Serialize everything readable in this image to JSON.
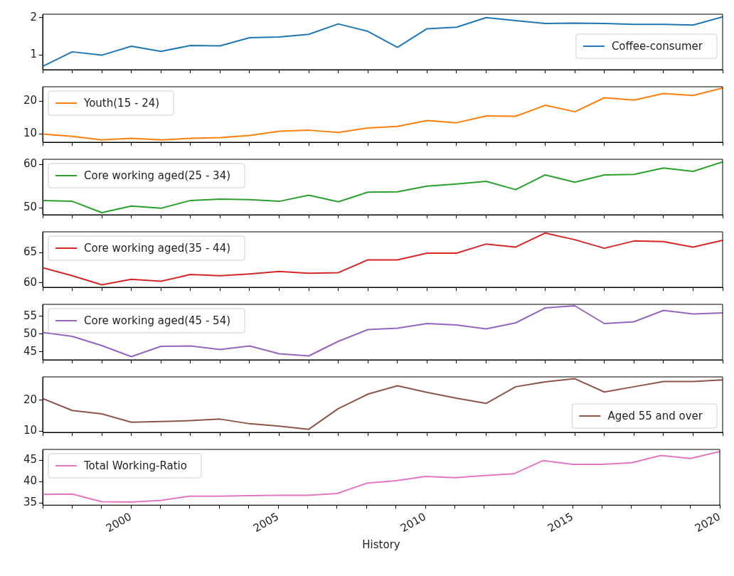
{
  "chart_data": [
    {
      "type": "line",
      "x": [
        1997,
        1998,
        1999,
        2000,
        2001,
        2002,
        2003,
        2004,
        2005,
        2006,
        2007,
        2008,
        2009,
        2010,
        2011,
        2012,
        2013,
        2014,
        2015,
        2016,
        2017,
        2018,
        2019,
        2020
      ],
      "xlim": [
        1997,
        2020
      ],
      "xticks": [
        {
          "value": 1997,
          "label": null
        },
        {
          "value": 1998,
          "label": null
        },
        {
          "value": 1999,
          "label": null
        },
        2000,
        {
          "value": 2001,
          "label": null
        },
        {
          "value": 2002,
          "label": null
        },
        {
          "value": 2003,
          "label": null
        },
        {
          "value": 2004,
          "label": null
        },
        2005,
        {
          "value": 2006,
          "label": null
        },
        {
          "value": 2007,
          "label": null
        },
        {
          "value": 2008,
          "label": null
        },
        {
          "value": 2009,
          "label": null
        },
        2010,
        {
          "value": 2011,
          "label": null
        },
        {
          "value": 2012,
          "label": null
        },
        {
          "value": 2013,
          "label": null
        },
        {
          "value": 2014,
          "label": null
        },
        2015,
        {
          "value": 2016,
          "label": null
        },
        {
          "value": 2017,
          "label": null
        },
        {
          "value": 2018,
          "label": null
        },
        {
          "value": 2019,
          "label": null
        },
        2020
      ],
      "ylim": [
        0.6,
        2.09
      ],
      "yticks": [
        1,
        2
      ],
      "tick_labels": "y",
      "legend": "right",
      "series": [
        {
          "name": "Coffee-consumer",
          "color": "#1f77b4",
          "values": [
            0.69,
            1.08,
            0.99,
            1.23,
            1.09,
            1.25,
            1.24,
            1.46,
            1.48,
            1.55,
            1.83,
            1.63,
            1.2,
            1.7,
            1.74,
            2.0,
            1.92,
            1.84,
            1.85,
            1.84,
            1.82,
            1.82,
            1.8,
            2.02
          ]
        }
      ]
    },
    {
      "type": "line",
      "x": [
        1997,
        1998,
        1999,
        2000,
        2001,
        2002,
        2003,
        2004,
        2005,
        2006,
        2007,
        2008,
        2009,
        2010,
        2011,
        2012,
        2013,
        2014,
        2015,
        2016,
        2017,
        2018,
        2019,
        2020
      ],
      "xlim": [
        1997,
        2020
      ],
      "xticks": [
        {
          "value": 1997,
          "label": null
        },
        {
          "value": 1998,
          "label": null
        },
        {
          "value": 1999,
          "label": null
        },
        2000,
        {
          "value": 2001,
          "label": null
        },
        {
          "value": 2002,
          "label": null
        },
        {
          "value": 2003,
          "label": null
        },
        {
          "value": 2004,
          "label": null
        },
        2005,
        {
          "value": 2006,
          "label": null
        },
        {
          "value": 2007,
          "label": null
        },
        {
          "value": 2008,
          "label": null
        },
        {
          "value": 2009,
          "label": null
        },
        2010,
        {
          "value": 2011,
          "label": null
        },
        {
          "value": 2012,
          "label": null
        },
        {
          "value": 2013,
          "label": null
        },
        {
          "value": 2014,
          "label": null
        },
        2015,
        {
          "value": 2016,
          "label": null
        },
        {
          "value": 2017,
          "label": null
        },
        {
          "value": 2018,
          "label": null
        },
        {
          "value": 2019,
          "label": null
        },
        2020
      ],
      "ylim": [
        7.4,
        24.5
      ],
      "yticks": [
        10,
        20
      ],
      "tick_labels": "y",
      "legend": "top left",
      "series": [
        {
          "name": "Youth(15 - 24)",
          "color": "#ff7f0e",
          "values": [
            9.9,
            9.2,
            8.1,
            8.6,
            8.1,
            8.6,
            8.8,
            9.5,
            10.8,
            11.1,
            10.4,
            11.8,
            12.3,
            14.1,
            13.4,
            15.5,
            15.4,
            18.8,
            16.8,
            21.1,
            20.4,
            22.4,
            21.8,
            24.1
          ]
        }
      ]
    },
    {
      "type": "line",
      "x": [
        1997,
        1998,
        1999,
        2000,
        2001,
        2002,
        2003,
        2004,
        2005,
        2006,
        2007,
        2008,
        2009,
        2010,
        2011,
        2012,
        2013,
        2014,
        2015,
        2016,
        2017,
        2018,
        2019,
        2020
      ],
      "xlim": [
        1997,
        2020
      ],
      "xticks": [
        {
          "value": 1997,
          "label": null
        },
        {
          "value": 1998,
          "label": null
        },
        {
          "value": 1999,
          "label": null
        },
        2000,
        {
          "value": 2001,
          "label": null
        },
        {
          "value": 2002,
          "label": null
        },
        {
          "value": 2003,
          "label": null
        },
        {
          "value": 2004,
          "label": null
        },
        2005,
        {
          "value": 2006,
          "label": null
        },
        {
          "value": 2007,
          "label": null
        },
        {
          "value": 2008,
          "label": null
        },
        {
          "value": 2009,
          "label": null
        },
        2010,
        {
          "value": 2011,
          "label": null
        },
        {
          "value": 2012,
          "label": null
        },
        {
          "value": 2013,
          "label": null
        },
        {
          "value": 2014,
          "label": null
        },
        2015,
        {
          "value": 2016,
          "label": null
        },
        {
          "value": 2017,
          "label": null
        },
        {
          "value": 2018,
          "label": null
        },
        {
          "value": 2019,
          "label": null
        },
        2020
      ],
      "ylim": [
        48.4,
        61.2
      ],
      "yticks": [
        50,
        60
      ],
      "tick_labels": "y",
      "legend": "top left",
      "series": [
        {
          "name": "Core working aged(25 - 34)",
          "color": "#2ca02c",
          "values": [
            51.7,
            51.5,
            48.9,
            50.4,
            49.9,
            51.7,
            52.0,
            51.9,
            51.5,
            52.9,
            51.4,
            53.6,
            53.7,
            55.0,
            55.5,
            56.1,
            54.2,
            57.6,
            55.9,
            57.6,
            57.7,
            59.2,
            58.4,
            60.6
          ]
        }
      ]
    },
    {
      "type": "line",
      "x": [
        1997,
        1998,
        1999,
        2000,
        2001,
        2002,
        2003,
        2004,
        2005,
        2006,
        2007,
        2008,
        2009,
        2010,
        2011,
        2012,
        2013,
        2014,
        2015,
        2016,
        2017,
        2018,
        2019,
        2020
      ],
      "xlim": [
        1997,
        2020
      ],
      "xticks": [
        {
          "value": 1997,
          "label": null
        },
        {
          "value": 1998,
          "label": null
        },
        {
          "value": 1999,
          "label": null
        },
        2000,
        {
          "value": 2001,
          "label": null
        },
        {
          "value": 2002,
          "label": null
        },
        {
          "value": 2003,
          "label": null
        },
        {
          "value": 2004,
          "label": null
        },
        2005,
        {
          "value": 2006,
          "label": null
        },
        {
          "value": 2007,
          "label": null
        },
        {
          "value": 2008,
          "label": null
        },
        {
          "value": 2009,
          "label": null
        },
        2010,
        {
          "value": 2011,
          "label": null
        },
        {
          "value": 2012,
          "label": null
        },
        {
          "value": 2013,
          "label": null
        },
        {
          "value": 2014,
          "label": null
        },
        2015,
        {
          "value": 2016,
          "label": null
        },
        {
          "value": 2017,
          "label": null
        },
        {
          "value": 2018,
          "label": null
        },
        {
          "value": 2019,
          "label": null
        },
        2020
      ],
      "ylim": [
        59.3,
        68.4
      ],
      "yticks": [
        60,
        65
      ],
      "tick_labels": "y",
      "legend": "top left",
      "series": [
        {
          "name": "Core working aged(35 - 44)",
          "color": "#d62728",
          "values": [
            62.5,
            61.2,
            59.7,
            60.6,
            60.3,
            61.4,
            61.2,
            61.5,
            61.9,
            61.6,
            61.7,
            63.8,
            63.8,
            64.9,
            64.9,
            66.4,
            65.9,
            68.2,
            67.1,
            65.7,
            66.9,
            66.8,
            65.9,
            67.0
          ]
        }
      ]
    },
    {
      "type": "line",
      "x": [
        1997,
        1998,
        1999,
        2000,
        2001,
        2002,
        2003,
        2004,
        2005,
        2006,
        2007,
        2008,
        2009,
        2010,
        2011,
        2012,
        2013,
        2014,
        2015,
        2016,
        2017,
        2018,
        2019,
        2020
      ],
      "xlim": [
        1997,
        2020
      ],
      "xticks": [
        {
          "value": 1997,
          "label": null
        },
        {
          "value": 1998,
          "label": null
        },
        {
          "value": 1999,
          "label": null
        },
        2000,
        {
          "value": 2001,
          "label": null
        },
        {
          "value": 2002,
          "label": null
        },
        {
          "value": 2003,
          "label": null
        },
        {
          "value": 2004,
          "label": null
        },
        2005,
        {
          "value": 2006,
          "label": null
        },
        {
          "value": 2007,
          "label": null
        },
        {
          "value": 2008,
          "label": null
        },
        {
          "value": 2009,
          "label": null
        },
        2010,
        {
          "value": 2011,
          "label": null
        },
        {
          "value": 2012,
          "label": null
        },
        {
          "value": 2013,
          "label": null
        },
        {
          "value": 2014,
          "label": null
        },
        2015,
        {
          "value": 2016,
          "label": null
        },
        {
          "value": 2017,
          "label": null
        },
        {
          "value": 2018,
          "label": null
        },
        {
          "value": 2019,
          "label": null
        },
        2020
      ],
      "ylim": [
        42.8,
        58.4
      ],
      "yticks": [
        45,
        50,
        55
      ],
      "tick_labels": "y",
      "legend": "top left",
      "series": [
        {
          "name": "Core working aged(45 - 54)",
          "color": "#9467bd",
          "values": [
            50.5,
            49.4,
            46.8,
            43.7,
            46.6,
            46.7,
            45.7,
            46.7,
            44.5,
            43.9,
            48.0,
            51.3,
            51.7,
            53.0,
            52.6,
            51.5,
            53.2,
            57.4,
            58.0,
            53.0,
            53.5,
            56.7,
            55.7,
            56.0
          ]
        }
      ]
    },
    {
      "type": "line",
      "x": [
        1997,
        1998,
        1999,
        2000,
        2001,
        2002,
        2003,
        2004,
        2005,
        2006,
        2007,
        2008,
        2009,
        2010,
        2011,
        2012,
        2013,
        2014,
        2015,
        2016,
        2017,
        2018,
        2019,
        2020
      ],
      "xlim": [
        1997,
        2020
      ],
      "xticks": [
        {
          "value": 1997,
          "label": null
        },
        {
          "value": 1998,
          "label": null
        },
        {
          "value": 1999,
          "label": null
        },
        2000,
        {
          "value": 2001,
          "label": null
        },
        {
          "value": 2002,
          "label": null
        },
        {
          "value": 2003,
          "label": null
        },
        {
          "value": 2004,
          "label": null
        },
        2005,
        {
          "value": 2006,
          "label": null
        },
        {
          "value": 2007,
          "label": null
        },
        {
          "value": 2008,
          "label": null
        },
        {
          "value": 2009,
          "label": null
        },
        2010,
        {
          "value": 2011,
          "label": null
        },
        {
          "value": 2012,
          "label": null
        },
        {
          "value": 2013,
          "label": null
        },
        {
          "value": 2014,
          "label": null
        },
        2015,
        {
          "value": 2016,
          "label": null
        },
        {
          "value": 2017,
          "label": null
        },
        {
          "value": 2018,
          "label": null
        },
        {
          "value": 2019,
          "label": null
        },
        2020
      ],
      "ylim": [
        9.6,
        27.6
      ],
      "yticks": [
        10,
        20
      ],
      "tick_labels": "y",
      "legend": "bottom right",
      "series": [
        {
          "name": "Aged 55 and over",
          "color": "#8c564b",
          "values": [
            20.6,
            16.7,
            15.6,
            12.9,
            13.1,
            13.4,
            13.9,
            12.4,
            11.6,
            10.6,
            17.3,
            22.0,
            24.7,
            22.6,
            20.7,
            19.0,
            24.4,
            26.0,
            27.0,
            22.7,
            24.4,
            26.1,
            26.1,
            26.6
          ]
        }
      ]
    },
    {
      "type": "line",
      "x": [
        1997,
        1998,
        1999,
        2000,
        2001,
        2002,
        2003,
        2004,
        2005,
        2006,
        2007,
        2008,
        2009,
        2010,
        2011,
        2012,
        2013,
        2014,
        2015,
        2016,
        2017,
        2018,
        2019,
        2020
      ],
      "xlim": [
        1997,
        2020
      ],
      "xticks": [
        {
          "value": 1997,
          "label": null
        },
        {
          "value": 1998,
          "label": null
        },
        {
          "value": 1999,
          "label": null
        },
        2000,
        {
          "value": 2001,
          "label": null
        },
        {
          "value": 2002,
          "label": null
        },
        {
          "value": 2003,
          "label": null
        },
        {
          "value": 2004,
          "label": null
        },
        2005,
        {
          "value": 2006,
          "label": null
        },
        {
          "value": 2007,
          "label": null
        },
        {
          "value": 2008,
          "label": null
        },
        {
          "value": 2009,
          "label": null
        },
        2010,
        {
          "value": 2011,
          "label": null
        },
        {
          "value": 2012,
          "label": null
        },
        {
          "value": 2013,
          "label": null
        },
        {
          "value": 2014,
          "label": null
        },
        2015,
        {
          "value": 2016,
          "label": null
        },
        {
          "value": 2017,
          "label": null
        },
        {
          "value": 2018,
          "label": null
        },
        {
          "value": 2019,
          "label": null
        },
        2020
      ],
      "ylim": [
        34.5,
        47.5
      ],
      "yticks": [
        35,
        40,
        45
      ],
      "xlabel": "History",
      "legend": "top left",
      "series": [
        {
          "name": "Total Working-Ratio",
          "color": "#e377c2",
          "values": [
            37.0,
            37.1,
            35.3,
            35.2,
            35.6,
            36.6,
            36.6,
            36.7,
            36.8,
            36.8,
            37.2,
            39.6,
            40.2,
            41.2,
            40.9,
            41.4,
            41.8,
            44.9,
            44.0,
            44.0,
            44.4,
            46.1,
            45.4,
            47.0
          ]
        }
      ]
    }
  ]
}
